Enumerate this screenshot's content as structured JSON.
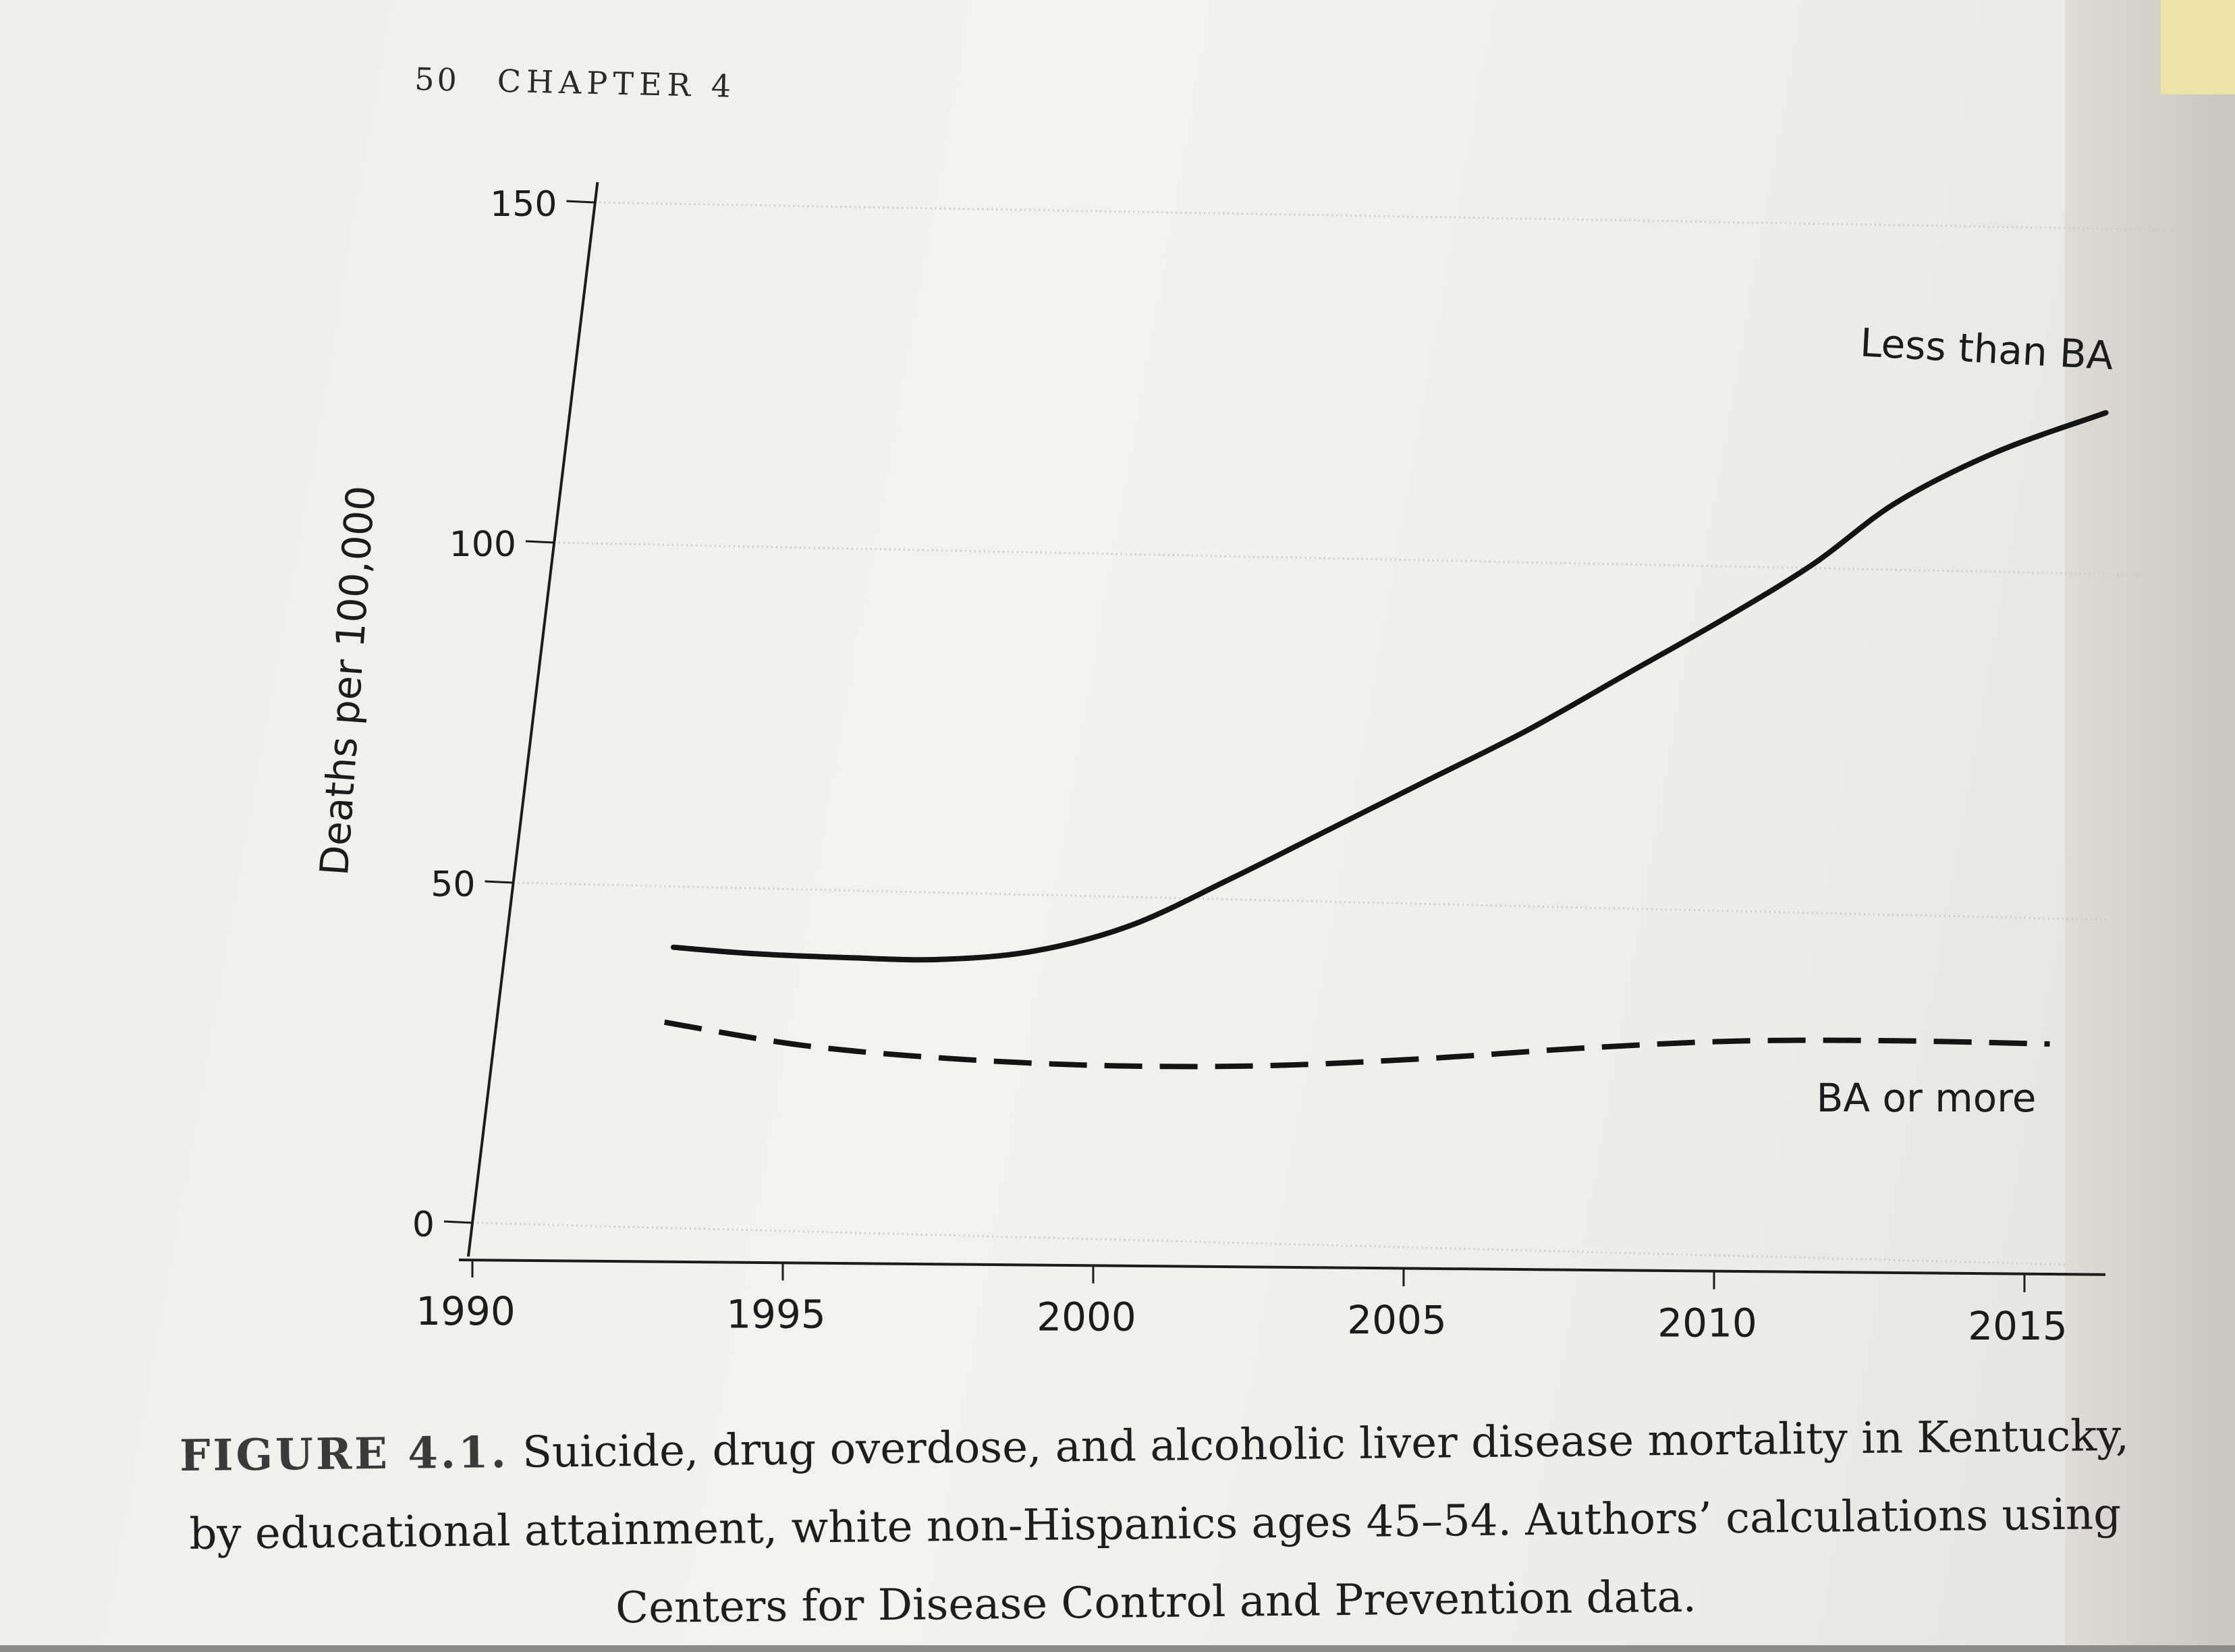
{
  "running_head": {
    "page_number": "50",
    "chapter": "CHAPTER 4"
  },
  "chart_data": {
    "type": "line",
    "ylabel": "Deaths per 100,000",
    "xlabel": "",
    "xlim": [
      1990,
      2015
    ],
    "ylim": [
      0,
      150
    ],
    "x_ticks": [
      "1990",
      "1995",
      "2000",
      "2005",
      "2010",
      "2015"
    ],
    "y_ticks": [
      "0",
      "50",
      "100",
      "150"
    ],
    "grid": true,
    "series": [
      {
        "name": "Less than BA",
        "style": "solid",
        "x": [
          1992.7,
          1994,
          1995.5,
          1997,
          1998.5,
          2000,
          2001.5,
          2003,
          2004.5,
          2006,
          2007.5,
          2009,
          2010.3,
          2011.5,
          2013,
          2014.7
        ],
        "y": [
          41,
          40.3,
          40,
          40,
          41.5,
          45.5,
          52.5,
          60,
          67.5,
          75,
          83.5,
          92,
          100,
          109,
          116.5,
          122.5
        ]
      },
      {
        "name": "BA or more",
        "style": "dashed",
        "x": [
          1992.7,
          1995,
          1997.5,
          2000,
          2002.5,
          2005,
          2007.5,
          2010,
          2012.5,
          2015
        ],
        "y": [
          30,
          27,
          25.5,
          25,
          25.5,
          27,
          29,
          30.5,
          31,
          31
        ]
      }
    ]
  },
  "caption": {
    "label": "FIGURE 4.1.",
    "text": "Suicide, drug overdose, and alcoholic liver disease mortality in Kentucky, by educational attainment, white non-Hispanics ages 45–54. Authors’ calculations using Centers for Disease Control and Prevention data."
  }
}
